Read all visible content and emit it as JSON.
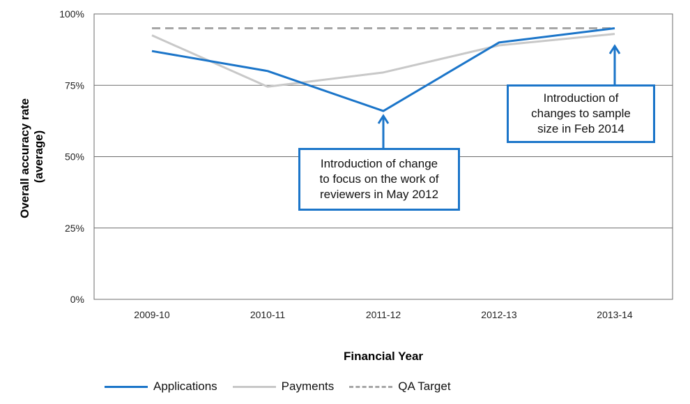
{
  "chart_data": {
    "type": "line",
    "categories": [
      "2009-10",
      "2010-11",
      "2011-12",
      "2012-13",
      "2013-14"
    ],
    "series": [
      {
        "name": "Applications",
        "values": [
          87,
          80,
          66,
          90,
          95
        ],
        "color": "#1b75c9",
        "style": "solid"
      },
      {
        "name": "Payments",
        "values": [
          92.5,
          74.5,
          79.5,
          89,
          93
        ],
        "color": "#c8c8c8",
        "style": "solid"
      },
      {
        "name": "QA Target",
        "values": [
          95,
          95,
          95,
          95,
          95
        ],
        "color": "#a6a6a6",
        "style": "dashed"
      }
    ],
    "xlabel": "Financial Year",
    "ylabel_lines": [
      "Overall accuracy rate",
      "(average)"
    ],
    "ylim": [
      0,
      100
    ],
    "yticks": [
      0,
      25,
      50,
      75,
      100
    ],
    "ytick_labels": [
      "0%",
      "25%",
      "50%",
      "75%",
      "100%"
    ],
    "grid": true,
    "legend_position": "bottom",
    "annotations": [
      {
        "lines": [
          "Introduction of change",
          "to focus on the work of",
          "reviewers in May 2012"
        ],
        "points_to": "2011-12"
      },
      {
        "lines": [
          "Introduction of",
          "changes to sample",
          "size in Feb 2014"
        ],
        "points_to": "2013-14"
      }
    ]
  }
}
